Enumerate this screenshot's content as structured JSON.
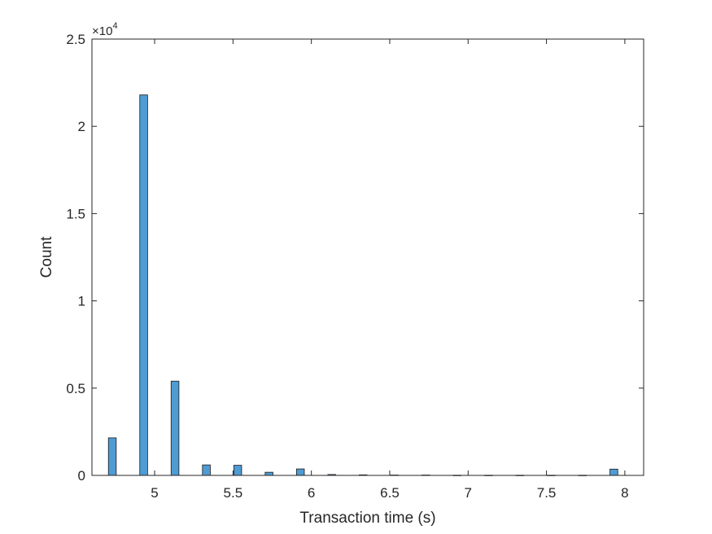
{
  "chart_data": {
    "type": "bar",
    "title": "",
    "xlabel": "Transaction time (s)",
    "ylabel": "Count",
    "xlim": [
      4.6,
      8.12
    ],
    "ylim": [
      0,
      25000
    ],
    "xticks": [
      5,
      5.5,
      6,
      6.5,
      7,
      7.5,
      8
    ],
    "xtick_labels": [
      "5",
      "5.5",
      "6",
      "6.5",
      "7",
      "7.5",
      "8"
    ],
    "yticks": [
      0,
      5000,
      10000,
      15000,
      20000,
      25000
    ],
    "ytick_labels": [
      "0",
      "0.5",
      "1",
      "1.5",
      "2",
      "2.5"
    ],
    "y_multiplier": {
      "base": "×10",
      "exponent": "4"
    },
    "bin_width": 0.05,
    "grid": false,
    "bar_color": "#4f9bd3",
    "edge_color": "#1a1a1a",
    "bins": [
      {
        "x": 4.73,
        "count": 2150
      },
      {
        "x": 4.93,
        "count": 21800
      },
      {
        "x": 5.13,
        "count": 5400
      },
      {
        "x": 5.33,
        "count": 600
      },
      {
        "x": 5.53,
        "count": 580
      },
      {
        "x": 5.73,
        "count": 180
      },
      {
        "x": 5.93,
        "count": 370
      },
      {
        "x": 6.13,
        "count": 50
      },
      {
        "x": 6.33,
        "count": 30
      },
      {
        "x": 6.53,
        "count": 20
      },
      {
        "x": 6.73,
        "count": 20
      },
      {
        "x": 6.93,
        "count": 10
      },
      {
        "x": 7.13,
        "count": 10
      },
      {
        "x": 7.33,
        "count": 10
      },
      {
        "x": 7.53,
        "count": 10
      },
      {
        "x": 7.73,
        "count": 10
      },
      {
        "x": 7.93,
        "count": 360
      }
    ]
  }
}
